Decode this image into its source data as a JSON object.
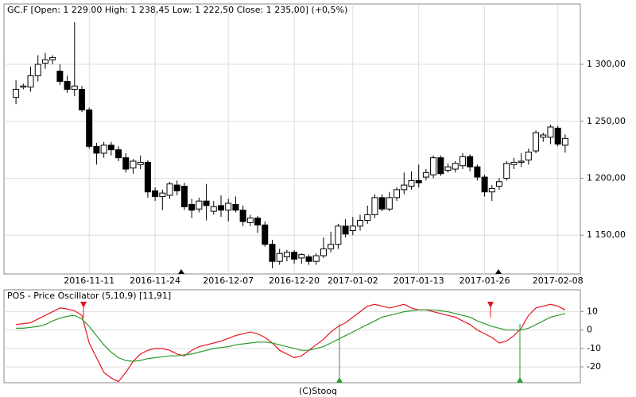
{
  "chart_data": [
    {
      "type": "candlestick",
      "title": "GC.F [Open: 1 229,00  High: 1 238,45  Low: 1 222,50  Close: 1 235,00] (+0,5%)",
      "categories": [
        null,
        null,
        null,
        null,
        null,
        null,
        null,
        null,
        null,
        null,
        "2016-11-11",
        null,
        null,
        null,
        null,
        null,
        null,
        null,
        null,
        "2016-11-24",
        null,
        null,
        null,
        null,
        null,
        null,
        null,
        null,
        null,
        "2016-12-07",
        null,
        null,
        null,
        null,
        null,
        null,
        null,
        null,
        "2016-12-20",
        null,
        null,
        null,
        null,
        null,
        null,
        null,
        "2017-01-02",
        null,
        null,
        null,
        null,
        null,
        null,
        null,
        null,
        "2017-01-13",
        null,
        null,
        null,
        null,
        null,
        null,
        null,
        null,
        "2017-01-26",
        null,
        null,
        null,
        null,
        null,
        null,
        null,
        null,
        null,
        "2017-02-08",
        null
      ],
      "open": [
        1271,
        1280,
        1280,
        1290,
        1301,
        1304,
        1294,
        1285,
        1278,
        1278,
        1260,
        1228,
        1222,
        1229,
        1225,
        1218,
        1209,
        1212,
        1214,
        1189,
        1184,
        1185,
        1194,
        1193,
        1177,
        1173,
        1180,
        1171,
        1176,
        1172,
        1177,
        1172,
        1161,
        1165,
        1159,
        1142,
        1127,
        1131,
        1135,
        1130,
        1131,
        1127,
        1132,
        1138,
        1142,
        1158,
        1154,
        1158,
        1163,
        1168,
        1183,
        1173,
        1183,
        1190,
        1193,
        1198,
        1201,
        1203,
        1218,
        1207,
        1208,
        1211,
        1219,
        1210,
        1201,
        1188,
        1193,
        1200,
        1212,
        1214,
        1216,
        1224,
        1236,
        1236,
        1244,
        1229
      ],
      "high": [
        1286,
        1283,
        1298,
        1308,
        1310,
        1308,
        1300,
        1290,
        1337,
        1281,
        1262,
        1231,
        1232,
        1232,
        1228,
        1222,
        1217,
        1220,
        1216,
        1192,
        1190,
        1197,
        1198,
        1196,
        1182,
        1183,
        1195,
        1180,
        1185,
        1182,
        1184,
        1176,
        1168,
        1167,
        1162,
        1146,
        1138,
        1137,
        1137,
        1134,
        1133,
        1134,
        1148,
        1153,
        1160,
        1164,
        1166,
        1168,
        1176,
        1186,
        1186,
        1188,
        1192,
        1205,
        1206,
        1212,
        1208,
        1220,
        1220,
        1213,
        1215,
        1222,
        1221,
        1212,
        1203,
        1194,
        1200,
        1215,
        1218,
        1222,
        1226,
        1242,
        1240,
        1247,
        1246,
        1238.45
      ],
      "low": [
        1265,
        1278,
        1276,
        1285,
        1296,
        1300,
        1282,
        1275,
        1272,
        1258,
        1226,
        1212,
        1218,
        1220,
        1215,
        1205,
        1204,
        1208,
        1183,
        1180,
        1172,
        1182,
        1185,
        1172,
        1165,
        1170,
        1163,
        1168,
        1166,
        1162,
        1170,
        1158,
        1158,
        1152,
        1140,
        1121,
        1124,
        1127,
        1125,
        1125,
        1124,
        1124,
        1130,
        1135,
        1138,
        1148,
        1150,
        1154,
        1160,
        1165,
        1171,
        1171,
        1180,
        1186,
        1190,
        1192,
        1198,
        1200,
        1202,
        1205,
        1205,
        1208,
        1206,
        1198,
        1184,
        1180,
        1190,
        1198,
        1208,
        1210,
        1212,
        1222,
        1232,
        1230,
        1228,
        1222.5
      ],
      "close": [
        1278,
        1281,
        1290,
        1300,
        1304,
        1306,
        1285,
        1278,
        1281,
        1260,
        1228,
        1222,
        1229,
        1225,
        1218,
        1208,
        1215,
        1214,
        1188,
        1184,
        1187,
        1195,
        1189,
        1175,
        1172,
        1180,
        1176,
        1175,
        1172,
        1178,
        1172,
        1162,
        1165,
        1159,
        1142,
        1127,
        1134,
        1135,
        1129,
        1133,
        1127,
        1132,
        1138,
        1142,
        1158,
        1151,
        1158,
        1163,
        1168,
        1183,
        1173,
        1183,
        1190,
        1194,
        1198,
        1196,
        1205,
        1218,
        1204,
        1210,
        1213,
        1219,
        1210,
        1201,
        1188,
        1191,
        1197,
        1213,
        1214,
        1215,
        1223,
        1240,
        1238,
        1245,
        1230,
        1235
      ],
      "up_color": "#ffffff",
      "down_color": "#000000",
      "ylim": [
        1116,
        1353
      ],
      "yticks": [
        {
          "value": 1150,
          "label": "1 150,00"
        },
        {
          "value": 1200,
          "label": "1 200,00"
        },
        {
          "value": 1250,
          "label": "1 250,00"
        },
        {
          "value": 1300,
          "label": "1 300,00"
        }
      ],
      "grid": true
    },
    {
      "type": "line",
      "title": "POS - Price Oscillator (5,10,9) [11,91]",
      "series": [
        {
          "color": "#e8141e",
          "values": [
            3,
            3.5,
            4,
            6,
            8,
            10,
            12,
            11.5,
            10.5,
            8,
            -7,
            -15,
            -23,
            -26,
            -28,
            -23,
            -17,
            -13,
            -11,
            -10,
            -10,
            -11,
            -13,
            -14,
            -11,
            -9,
            -8,
            -7,
            -6,
            -4.5,
            -3,
            -2,
            -1,
            -2,
            -4,
            -7,
            -11,
            -13,
            -15,
            -14,
            -11,
            -8,
            -5,
            -1,
            2,
            4,
            7,
            10,
            13,
            14,
            13,
            12,
            13,
            14,
            12,
            11,
            11,
            10,
            9,
            8,
            7,
            5,
            3,
            0,
            -2,
            -4,
            -7,
            -6,
            -3,
            1,
            8,
            12,
            13,
            14,
            13,
            11
          ]
        },
        {
          "color": "#2a9a2a",
          "values": [
            1,
            1,
            1.5,
            2,
            3,
            5,
            6.5,
            7.5,
            8,
            6,
            2,
            -3,
            -8,
            -12,
            -15,
            -16.5,
            -17,
            -16.5,
            -15.5,
            -15,
            -14.5,
            -14,
            -14,
            -13.5,
            -13,
            -12,
            -11,
            -10,
            -9.5,
            -9,
            -8,
            -7.5,
            -7,
            -6.5,
            -6.5,
            -7,
            -8,
            -9,
            -10,
            -11,
            -11,
            -10,
            -9,
            -7,
            -5,
            -3,
            -1,
            1,
            3,
            5,
            7,
            8,
            9,
            10,
            10.5,
            11,
            11,
            11,
            10.5,
            10,
            9,
            8,
            7,
            5,
            3.5,
            2,
            1,
            0,
            0,
            0,
            1,
            3,
            5,
            7,
            8,
            9
          ]
        }
      ],
      "ylim": [
        -28.6,
        21.9
      ],
      "yticks": [
        -20,
        -10,
        0,
        10
      ],
      "grid": true
    },
    {
      "footer": "(C)Stooq"
    }
  ]
}
